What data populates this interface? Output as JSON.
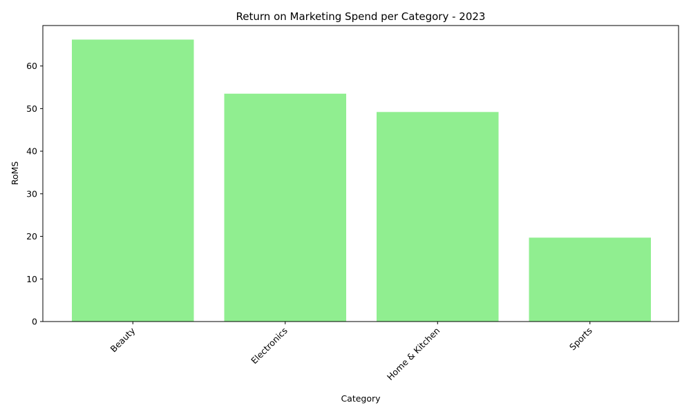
{
  "chart_data": {
    "type": "bar",
    "title": "Return on Marketing Spend per Category - 2023",
    "xlabel": "Category",
    "ylabel": "RoMS",
    "categories": [
      "Beauty",
      "Electronics",
      "Home & Kitchen",
      "Sports"
    ],
    "values": [
      66.2,
      53.5,
      49.2,
      19.7
    ],
    "ylim": [
      0,
      69.5
    ],
    "yticks": [
      0,
      10,
      20,
      30,
      40,
      50,
      60
    ],
    "x_tick_rotation_deg": 45,
    "grid": false,
    "legend": "none",
    "bar_color": "#90ee90"
  }
}
